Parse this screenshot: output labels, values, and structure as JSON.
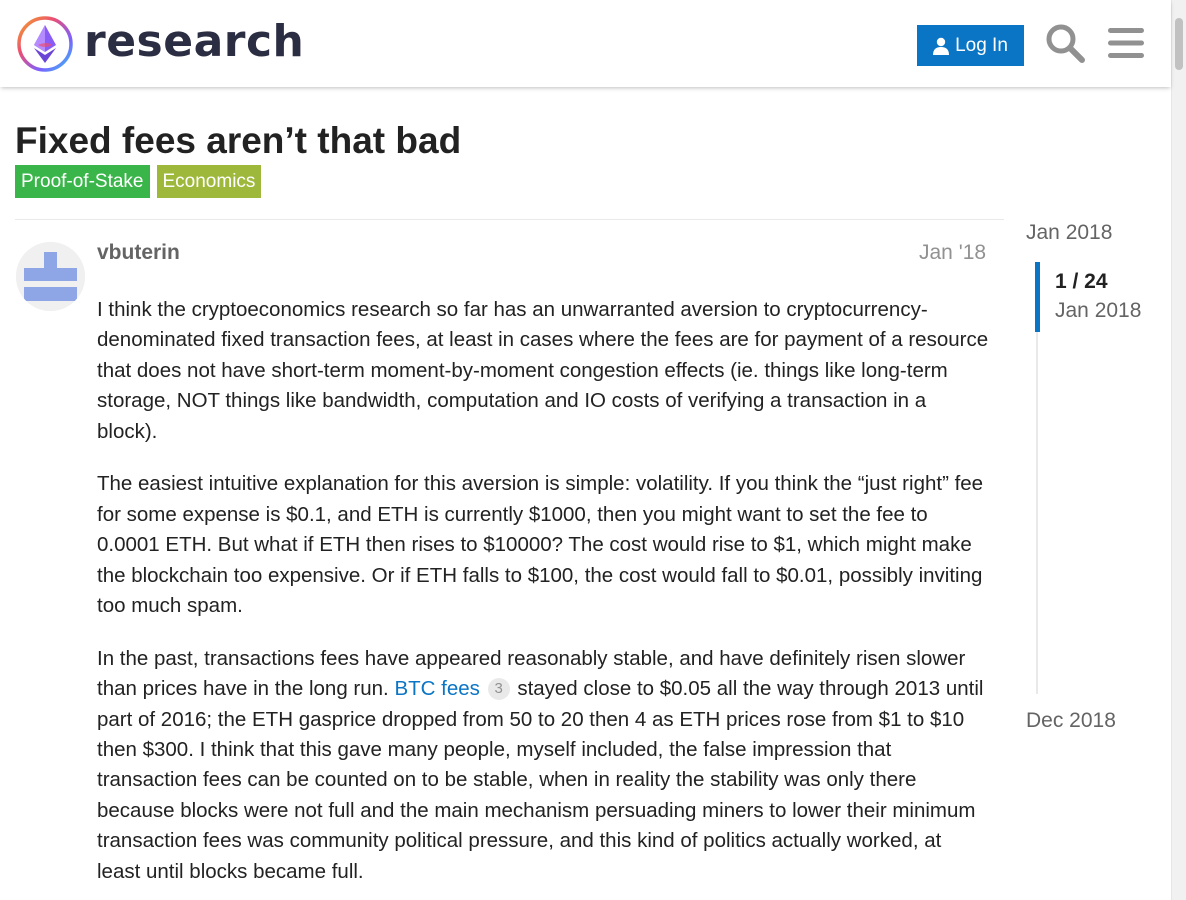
{
  "header": {
    "site_name": "research",
    "login_label": "Log In",
    "icons": {
      "logo": "ethereum-research-logo",
      "user": "user-icon",
      "search": "search-icon",
      "menu": "hamburger-menu-icon"
    },
    "accent_color": "#0a75c4"
  },
  "topic": {
    "title": "Fixed fees aren’t that bad",
    "tags": [
      {
        "label": "Proof-of-Stake",
        "color": "#3ab54a"
      },
      {
        "label": "Economics",
        "color": "#9eb83b"
      }
    ]
  },
  "post": {
    "username": "vbuterin",
    "date": "Jan '18",
    "paragraphs": [
      "I think the cryptoeconomics research so far has an unwarranted aversion to cryptocurrency-denominated fixed transaction fees, at least in cases where the fees are for payment of a resource that does not have short-term moment-by-moment congestion effects (ie. things like long-term storage, NOT things like bandwidth, computation and IO costs of verifying a transaction in a block).",
      "The easiest intuitive explanation for this aversion is simple: volatility. If you think the “just right” fee for some expense is $0.1, and ETH is currently $1000, then you might want to set the fee to 0.0001 ETH. But what if ETH then rises to $10000? The cost would rise to $1, which might make the blockchain too expensive. Or if ETH falls to $100, the cost would fall to $0.01, possibly inviting too much spam."
    ],
    "paragraph3": {
      "before_link": "In the past, transactions fees have appeared reasonably stable, and have definitely risen slower than prices have in the long run.",
      "link_text": "BTC fees",
      "link_clicks": "3",
      "after_link": "stayed close to $0.05 all the way through 2013 until part of 2016; the ETH gasprice dropped from 50 to 20 then 4 as ETH prices rose from $1 to $10 then $300. I think that this gave many people, myself included, the false impression that transaction fees can be counted on to be stable, when in reality the stability was only there because blocks were not full and the main mechanism persuading miners to lower their minimum transaction fees was community political pressure, and this kind of politics actually worked, at least until blocks became full."
    }
  },
  "timeline": {
    "start_date": "Jan 2018",
    "position": "1 / 24",
    "current_date": "Jan 2018",
    "end_date": "Dec 2018"
  }
}
